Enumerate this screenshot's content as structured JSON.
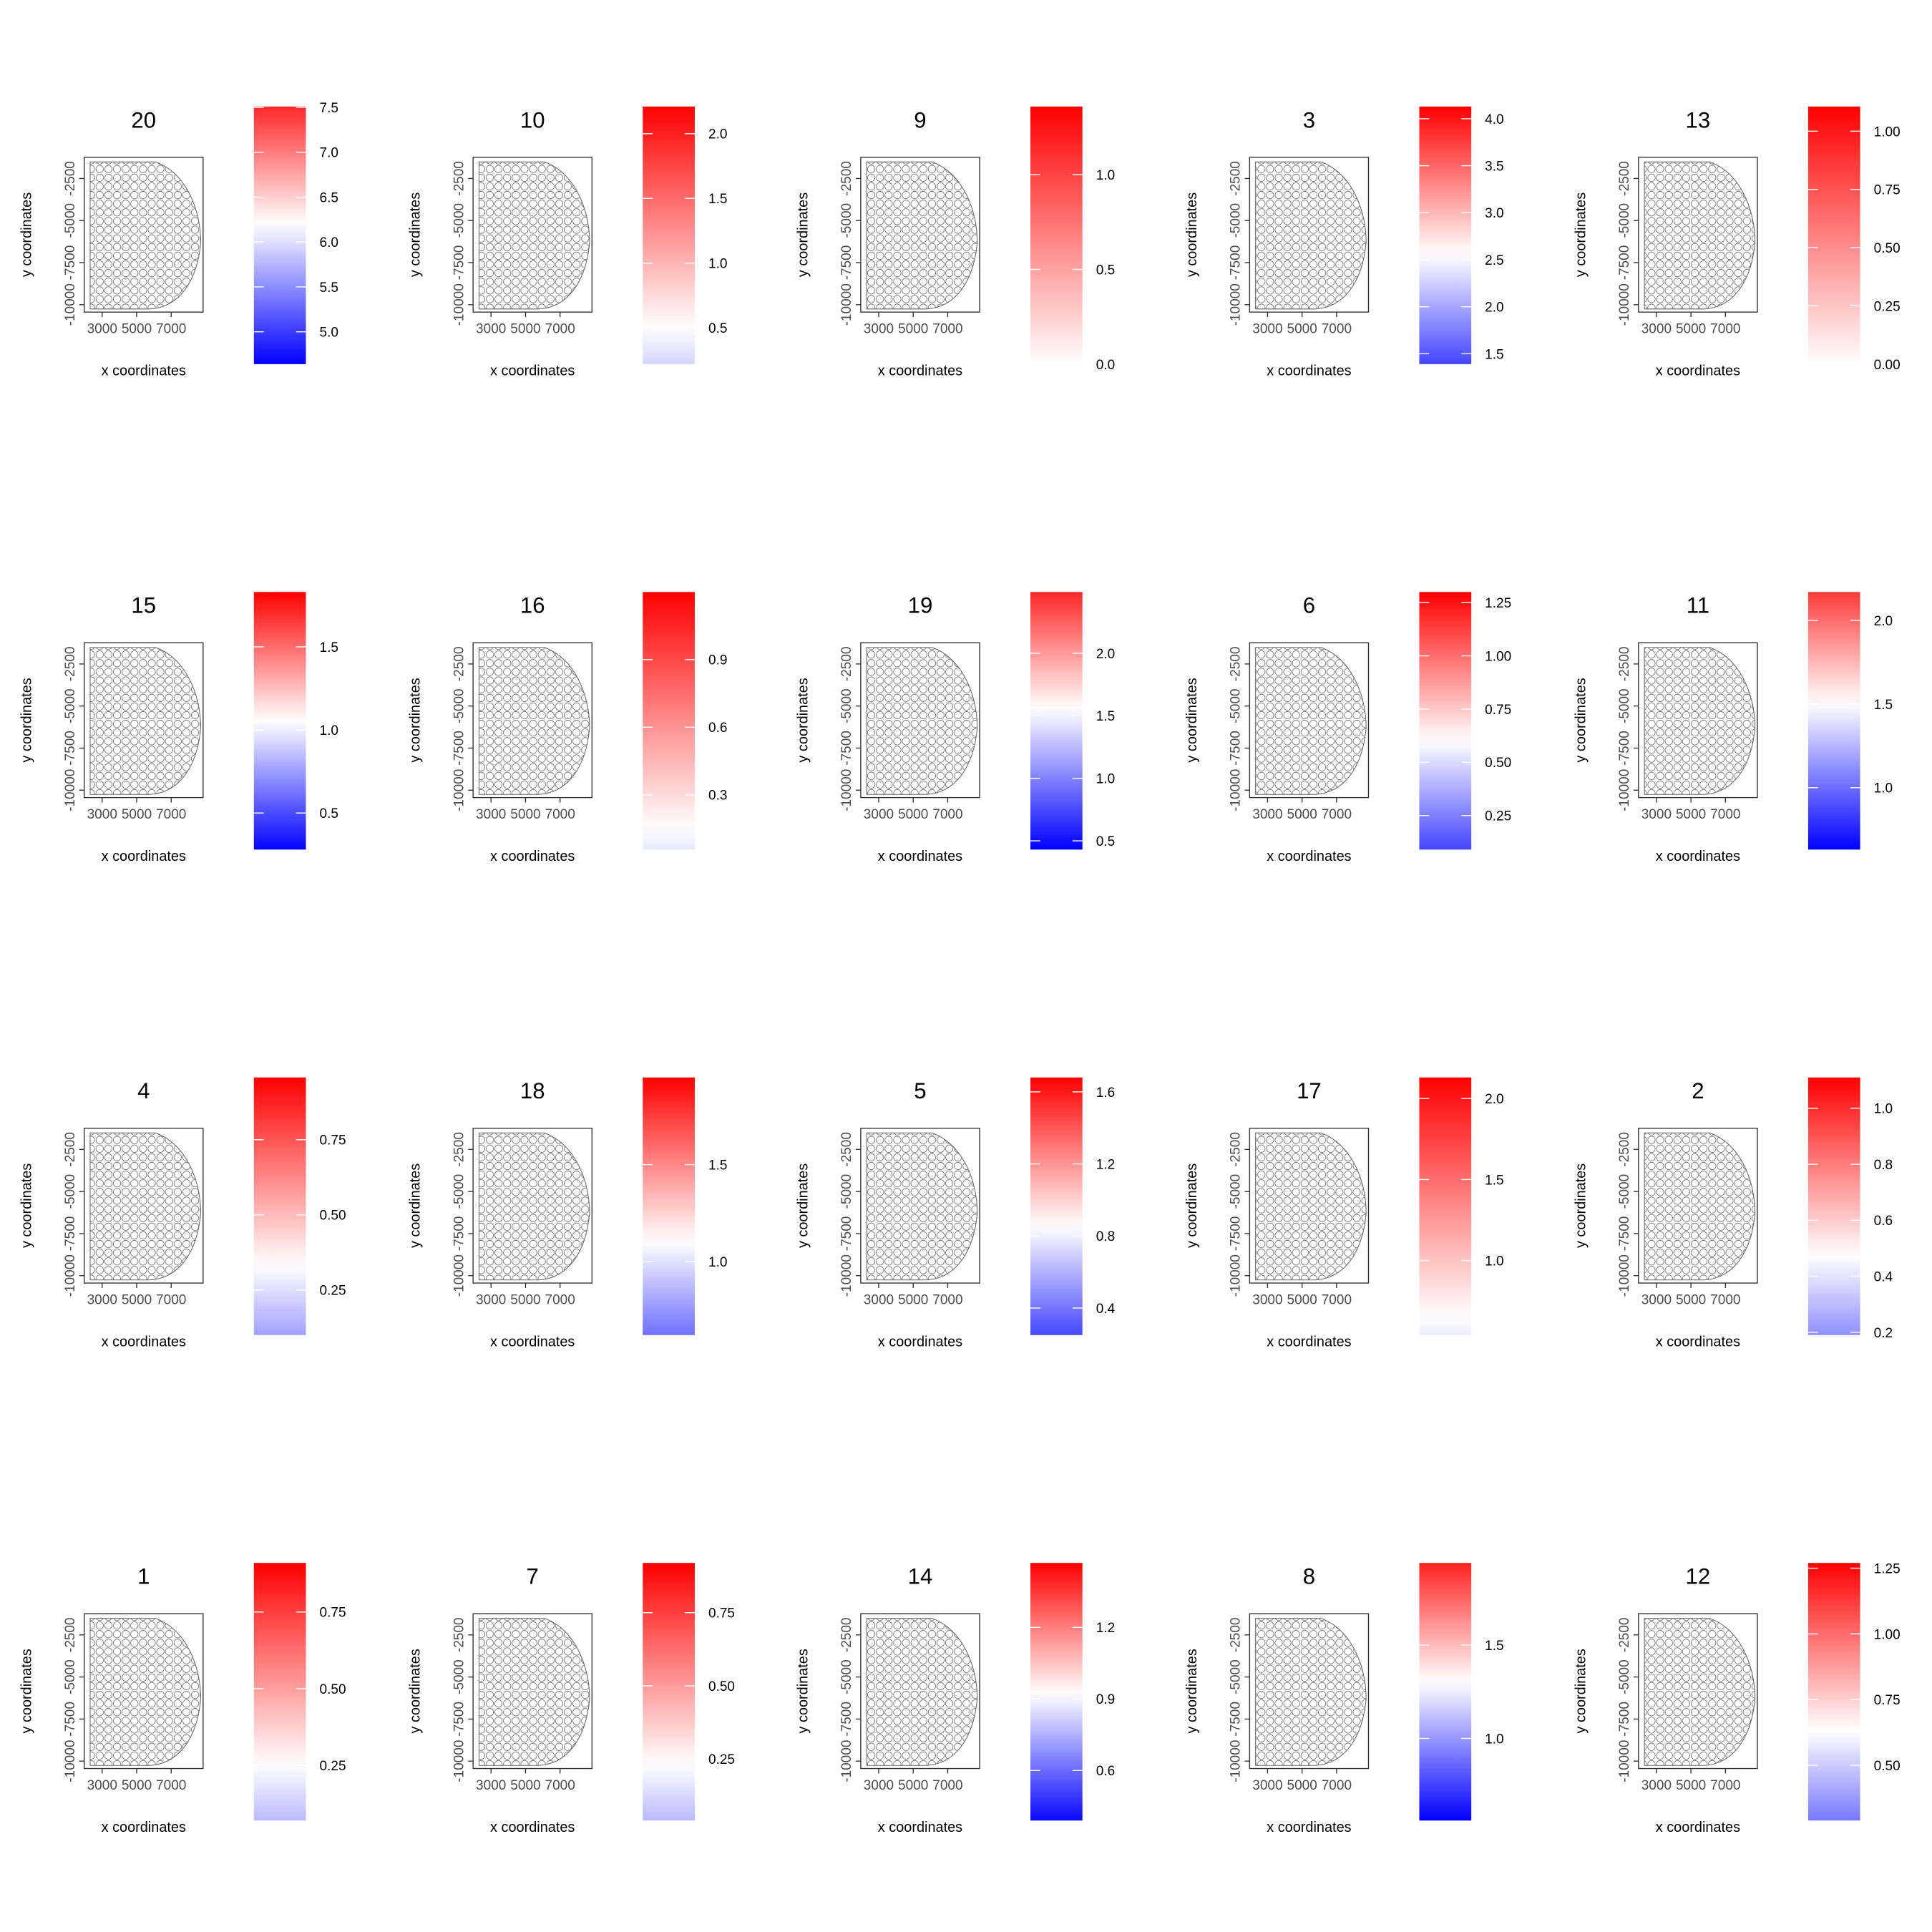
{
  "chart_data": [
    {
      "type": "scatter",
      "title": "20",
      "x_label": "x coordinates",
      "y_label": "y coordinates",
      "xlim": [
        1960,
        8850
      ],
      "ylim": [
        -10440,
        -1240
      ],
      "xticks": [
        3000,
        5000,
        7000
      ],
      "yticks": [
        -10000,
        -7500,
        -5000,
        -2500
      ],
      "colorbar": {
        "lim": [
          4.64,
          7.51
        ],
        "midpoint": 6.2,
        "low": "#0000ff",
        "mid": "#ffffff",
        "high": "#ff0000",
        "ticks": [
          {
            "value": 5,
            "label": "5.0"
          },
          5.5,
          {
            "value": 6,
            "label": "6.0"
          },
          6.5,
          {
            "value": 7,
            "label": "7.0"
          },
          7.5
        ]
      }
    },
    {
      "type": "scatter",
      "title": "10",
      "x_label": "x coordinates",
      "y_label": "y coordinates",
      "xlim": [
        1960,
        8850
      ],
      "ylim": [
        -10440,
        -1240
      ],
      "xticks": [
        3000,
        5000,
        7000
      ],
      "yticks": [
        -10000,
        -7500,
        -5000,
        -2500
      ],
      "colorbar": {
        "lim": [
          0.22,
          2.21
        ],
        "midpoint": 0.5,
        "low": "#0000ff",
        "mid": "#ffffff",
        "high": "#ff0000",
        "ticks": [
          0.5,
          {
            "value": 1,
            "label": "1.0"
          },
          1.5,
          {
            "value": 2,
            "label": "2.0"
          }
        ]
      }
    },
    {
      "type": "scatter",
      "title": "9",
      "x_label": "x coordinates",
      "y_label": "y coordinates",
      "xlim": [
        1960,
        8850
      ],
      "ylim": [
        -10440,
        -1240
      ],
      "xticks": [
        3000,
        5000,
        7000
      ],
      "yticks": [
        -10000,
        -7500,
        -5000,
        -2500
      ],
      "colorbar": {
        "lim": [
          0,
          1.36
        ],
        "midpoint": 0,
        "low": "#0000ff",
        "mid": "#ffffff",
        "high": "#ff0000",
        "ticks": [
          {
            "value": 0,
            "label": "0.0"
          },
          0.5,
          {
            "value": 1,
            "label": "1.0"
          }
        ]
      }
    },
    {
      "type": "scatter",
      "title": "3",
      "x_label": "x coordinates",
      "y_label": "y coordinates",
      "xlim": [
        1960,
        8850
      ],
      "ylim": [
        -10440,
        -1240
      ],
      "xticks": [
        3000,
        5000,
        7000
      ],
      "yticks": [
        -10000,
        -7500,
        -5000,
        -2500
      ],
      "colorbar": {
        "lim": [
          1.39,
          4.13
        ],
        "midpoint": 2.55,
        "low": "#0000ff",
        "mid": "#ffffff",
        "high": "#ff0000",
        "ticks": [
          1.5,
          {
            "value": 2,
            "label": "2.0"
          },
          2.5,
          {
            "value": 3,
            "label": "3.0"
          },
          3.5,
          {
            "value": 4,
            "label": "4.0"
          }
        ]
      }
    },
    {
      "type": "scatter",
      "title": "13",
      "x_label": "x coordinates",
      "y_label": "y coordinates",
      "xlim": [
        1960,
        8850
      ],
      "ylim": [
        -10440,
        -1240
      ],
      "xticks": [
        3000,
        5000,
        7000
      ],
      "yticks": [
        -10000,
        -7500,
        -5000,
        -2500
      ],
      "colorbar": {
        "lim": [
          0,
          1.106
        ],
        "midpoint": 0,
        "low": "#0000ff",
        "mid": "#ffffff",
        "high": "#ff0000",
        "ticks": [
          {
            "value": 0,
            "label": "0.00"
          },
          0.25,
          {
            "value": 0.5,
            "label": "0.50"
          },
          0.75,
          {
            "value": 1,
            "label": "1.00"
          }
        ]
      }
    },
    {
      "type": "scatter",
      "title": "15",
      "x_label": "x coordinates",
      "y_label": "y coordinates",
      "xlim": [
        1960,
        8850
      ],
      "ylim": [
        -10440,
        -1240
      ],
      "xticks": [
        3000,
        5000,
        7000
      ],
      "yticks": [
        -10000,
        -7500,
        -5000,
        -2500
      ],
      "colorbar": {
        "lim": [
          0.28,
          1.83
        ],
        "midpoint": 1.05,
        "low": "#0000ff",
        "mid": "#ffffff",
        "high": "#ff0000",
        "ticks": [
          0.5,
          {
            "value": 1,
            "label": "1.0"
          },
          1.5
        ]
      }
    },
    {
      "type": "scatter",
      "title": "16",
      "x_label": "x coordinates",
      "y_label": "y coordinates",
      "xlim": [
        1960,
        8850
      ],
      "ylim": [
        -10440,
        -1240
      ],
      "xticks": [
        3000,
        5000,
        7000
      ],
      "yticks": [
        -10000,
        -7500,
        -5000,
        -2500
      ],
      "colorbar": {
        "lim": [
          0.057,
          1.2
        ],
        "midpoint": 0.15,
        "low": "#0000ff",
        "mid": "#ffffff",
        "high": "#ff0000",
        "ticks": [
          0.3,
          0.6,
          0.9
        ]
      }
    },
    {
      "type": "scatter",
      "title": "19",
      "x_label": "x coordinates",
      "y_label": "y coordinates",
      "xlim": [
        1960,
        8850
      ],
      "ylim": [
        -10440,
        -1240
      ],
      "xticks": [
        3000,
        5000,
        7000
      ],
      "yticks": [
        -10000,
        -7500,
        -5000,
        -2500
      ],
      "colorbar": {
        "lim": [
          0.43,
          2.49
        ],
        "midpoint": 1.55,
        "low": "#0000ff",
        "mid": "#ffffff",
        "high": "#ff0000",
        "ticks": [
          0.5,
          {
            "value": 1,
            "label": "1.0"
          },
          1.5,
          {
            "value": 2,
            "label": "2.0"
          }
        ]
      }
    },
    {
      "type": "scatter",
      "title": "6",
      "x_label": "x coordinates",
      "y_label": "y coordinates",
      "xlim": [
        1960,
        8850
      ],
      "ylim": [
        -10440,
        -1240
      ],
      "xticks": [
        3000,
        5000,
        7000
      ],
      "yticks": [
        -10000,
        -7500,
        -5000,
        -2500
      ],
      "colorbar": {
        "lim": [
          0.09,
          1.3
        ],
        "midpoint": 0.6,
        "low": "#0000ff",
        "mid": "#ffffff",
        "high": "#ff0000",
        "ticks": [
          0.25,
          {
            "value": 0.5,
            "label": "0.50"
          },
          0.75,
          {
            "value": 1,
            "label": "1.00"
          },
          1.25
        ]
      }
    },
    {
      "type": "scatter",
      "title": "11",
      "x_label": "x coordinates",
      "y_label": "y coordinates",
      "xlim": [
        1960,
        8850
      ],
      "ylim": [
        -10440,
        -1240
      ],
      "xticks": [
        3000,
        5000,
        7000
      ],
      "yticks": [
        -10000,
        -7500,
        -5000,
        -2500
      ],
      "colorbar": {
        "lim": [
          0.63,
          2.17
        ],
        "midpoint": 1.5,
        "low": "#0000ff",
        "mid": "#ffffff",
        "high": "#ff0000",
        "ticks": [
          {
            "value": 1,
            "label": "1.0"
          },
          1.5,
          {
            "value": 2,
            "label": "2.0"
          }
        ]
      }
    },
    {
      "type": "scatter",
      "title": "4",
      "x_label": "x coordinates",
      "y_label": "y coordinates",
      "xlim": [
        1960,
        8850
      ],
      "ylim": [
        -10440,
        -1240
      ],
      "xticks": [
        3000,
        5000,
        7000
      ],
      "yticks": [
        -10000,
        -7500,
        -5000,
        -2500
      ],
      "colorbar": {
        "lim": [
          0.1,
          0.957
        ],
        "midpoint": 0.33,
        "low": "#0000ff",
        "mid": "#ffffff",
        "high": "#ff0000",
        "ticks": [
          0.25,
          {
            "value": 0.5,
            "label": "0.50"
          },
          0.75
        ]
      }
    },
    {
      "type": "scatter",
      "title": "18",
      "x_label": "x coordinates",
      "y_label": "y coordinates",
      "xlim": [
        1960,
        8850
      ],
      "ylim": [
        -10440,
        -1240
      ],
      "xticks": [
        3000,
        5000,
        7000
      ],
      "yticks": [
        -10000,
        -7500,
        -5000,
        -2500
      ],
      "colorbar": {
        "lim": [
          0.62,
          1.95
        ],
        "midpoint": 1.1,
        "low": "#0000ff",
        "mid": "#ffffff",
        "high": "#ff0000",
        "ticks": [
          {
            "value": 1,
            "label": "1.0"
          },
          1.5
        ]
      }
    },
    {
      "type": "scatter",
      "title": "5",
      "x_label": "x coordinates",
      "y_label": "y coordinates",
      "xlim": [
        1960,
        8850
      ],
      "ylim": [
        -10440,
        -1240
      ],
      "xticks": [
        3000,
        5000,
        7000
      ],
      "yticks": [
        -10000,
        -7500,
        -5000,
        -2500
      ],
      "colorbar": {
        "lim": [
          0.25,
          1.68
        ],
        "midpoint": 0.85,
        "low": "#0000ff",
        "mid": "#ffffff",
        "high": "#ff0000",
        "ticks": [
          0.4,
          0.8,
          1.2,
          1.6
        ]
      }
    },
    {
      "type": "scatter",
      "title": "17",
      "x_label": "x coordinates",
      "y_label": "y coordinates",
      "xlim": [
        1960,
        8850
      ],
      "ylim": [
        -10440,
        -1240
      ],
      "xticks": [
        3000,
        5000,
        7000
      ],
      "yticks": [
        -10000,
        -7500,
        -5000,
        -2500
      ],
      "colorbar": {
        "lim": [
          0.54,
          2.13
        ],
        "midpoint": 0.65,
        "low": "#0000ff",
        "mid": "#ffffff",
        "high": "#ff0000",
        "ticks": [
          {
            "value": 1,
            "label": "1.0"
          },
          1.5,
          {
            "value": 2,
            "label": "2.0"
          }
        ]
      }
    },
    {
      "type": "scatter",
      "title": "2",
      "x_label": "x coordinates",
      "y_label": "y coordinates",
      "xlim": [
        1960,
        8850
      ],
      "ylim": [
        -10440,
        -1240
      ],
      "xticks": [
        3000,
        5000,
        7000
      ],
      "yticks": [
        -10000,
        -7500,
        -5000,
        -2500
      ],
      "colorbar": {
        "lim": [
          0.19,
          1.11
        ],
        "midpoint": 0.47,
        "low": "#0000ff",
        "mid": "#ffffff",
        "high": "#ff0000",
        "ticks": [
          0.2,
          0.4,
          0.6,
          0.8,
          {
            "value": 1,
            "label": "1.0"
          }
        ]
      }
    },
    {
      "type": "scatter",
      "title": "1",
      "x_label": "x coordinates",
      "y_label": "y coordinates",
      "xlim": [
        1960,
        8850
      ],
      "ylim": [
        -10440,
        -1240
      ],
      "xticks": [
        3000,
        5000,
        7000
      ],
      "yticks": [
        -10000,
        -7500,
        -5000,
        -2500
      ],
      "colorbar": {
        "lim": [
          0.07,
          0.91
        ],
        "midpoint": 0.25,
        "low": "#0000ff",
        "mid": "#ffffff",
        "high": "#ff0000",
        "ticks": [
          0.25,
          {
            "value": 0.5,
            "label": "0.50"
          },
          0.75
        ]
      }
    },
    {
      "type": "scatter",
      "title": "7",
      "x_label": "x coordinates",
      "y_label": "y coordinates",
      "xlim": [
        1960,
        8850
      ],
      "ylim": [
        -10440,
        -1240
      ],
      "xticks": [
        3000,
        5000,
        7000
      ],
      "yticks": [
        -10000,
        -7500,
        -5000,
        -2500
      ],
      "colorbar": {
        "lim": [
          0.04,
          0.92
        ],
        "midpoint": 0.23,
        "low": "#0000ff",
        "mid": "#ffffff",
        "high": "#ff0000",
        "ticks": [
          0.25,
          {
            "value": 0.5,
            "label": "0.50"
          },
          0.75
        ]
      }
    },
    {
      "type": "scatter",
      "title": "14",
      "x_label": "x coordinates",
      "y_label": "y coordinates",
      "xlim": [
        1960,
        8850
      ],
      "ylim": [
        -10440,
        -1240
      ],
      "xticks": [
        3000,
        5000,
        7000
      ],
      "yticks": [
        -10000,
        -7500,
        -5000,
        -2500
      ],
      "colorbar": {
        "lim": [
          0.39,
          1.47
        ],
        "midpoint": 0.92,
        "low": "#0000ff",
        "mid": "#ffffff",
        "high": "#ff0000",
        "ticks": [
          0.6,
          0.9,
          1.2
        ]
      }
    },
    {
      "type": "scatter",
      "title": "8",
      "x_label": "x coordinates",
      "y_label": "y coordinates",
      "xlim": [
        1960,
        8850
      ],
      "ylim": [
        -10440,
        -1240
      ],
      "xticks": [
        3000,
        5000,
        7000
      ],
      "yticks": [
        -10000,
        -7500,
        -5000,
        -2500
      ],
      "colorbar": {
        "lim": [
          0.56,
          1.94
        ],
        "midpoint": 1.3,
        "low": "#0000ff",
        "mid": "#ffffff",
        "high": "#ff0000",
        "ticks": [
          {
            "value": 1,
            "label": "1.0"
          },
          1.5
        ]
      }
    },
    {
      "type": "scatter",
      "title": "12",
      "x_label": "x coordinates",
      "y_label": "y coordinates",
      "xlim": [
        1960,
        8850
      ],
      "ylim": [
        -10440,
        -1240
      ],
      "xticks": [
        3000,
        5000,
        7000
      ],
      "yticks": [
        -10000,
        -7500,
        -5000,
        -2500
      ],
      "colorbar": {
        "lim": [
          0.29,
          1.27
        ],
        "midpoint": 0.63,
        "low": "#0000ff",
        "mid": "#ffffff",
        "high": "#ff0000",
        "ticks": [
          {
            "value": 0.5,
            "label": "0.50"
          },
          0.75,
          {
            "value": 1,
            "label": "1.00"
          },
          1.25
        ]
      }
    }
  ]
}
